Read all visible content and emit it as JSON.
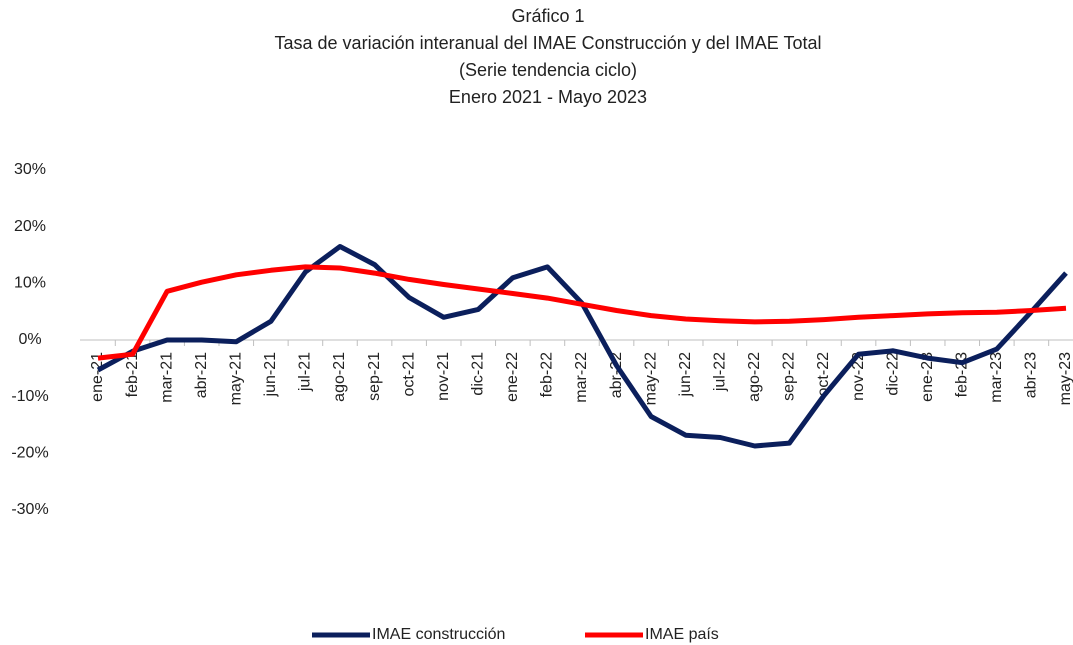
{
  "chart_data": {
    "type": "line",
    "title": "Gráfico 1",
    "subtitle": [
      "Tasa de variación interanual del IMAE Construcción y del IMAE Total",
      "(Serie tendencia ciclo)",
      "Enero 2021 - Mayo 2023"
    ],
    "categories": [
      "ene-21",
      "feb-21",
      "mar-21",
      "abr-21",
      "may-21",
      "jun-21",
      "jul-21",
      "ago-21",
      "sep-21",
      "oct-21",
      "nov-21",
      "dic-21",
      "ene-22",
      "feb-22",
      "mar-22",
      "abr-22",
      "may-22",
      "jun-22",
      "jul-22",
      "ago-22",
      "sep-22",
      "oct-22",
      "nov-22",
      "dic-22",
      "ene-23",
      "feb-23",
      "mar-23",
      "abr-23",
      "may-23"
    ],
    "series": [
      {
        "name": "IMAE construcción",
        "color": "#0b1f5c",
        "values": [
          -5.3,
          -2,
          0,
          0,
          -0.3,
          3.3,
          12,
          16.5,
          13.3,
          7.5,
          4,
          5.4,
          11,
          12.9,
          6.5,
          -4.5,
          -13.5,
          -16.8,
          -17.2,
          -18.7,
          -18.2,
          -9.8,
          -2.5,
          -1.9,
          -3.2,
          -4,
          -1.6,
          5,
          11.8
        ]
      },
      {
        "name": "IMAE país",
        "color": "#ff0000",
        "values": [
          -3.2,
          -2.5,
          8.6,
          10.2,
          11.5,
          12.3,
          12.9,
          12.7,
          11.8,
          10.7,
          9.8,
          9,
          8.2,
          7.4,
          6.3,
          5.2,
          4.3,
          3.7,
          3.4,
          3.2,
          3.3,
          3.6,
          4,
          4.3,
          4.6,
          4.8,
          4.9,
          5.2,
          5.6
        ]
      }
    ],
    "ylim": [
      -30,
      30
    ],
    "yticks": [
      {
        "value": -30,
        "label": "-30%"
      },
      {
        "value": -20,
        "label": "-20%"
      },
      {
        "value": -10,
        "label": "-10%"
      },
      {
        "value": 0,
        "label": "0%"
      },
      {
        "value": 10,
        "label": "10%"
      },
      {
        "value": 20,
        "label": "20%"
      },
      {
        "value": 30,
        "label": "30%"
      }
    ],
    "grid": false,
    "legend": "bottom"
  }
}
